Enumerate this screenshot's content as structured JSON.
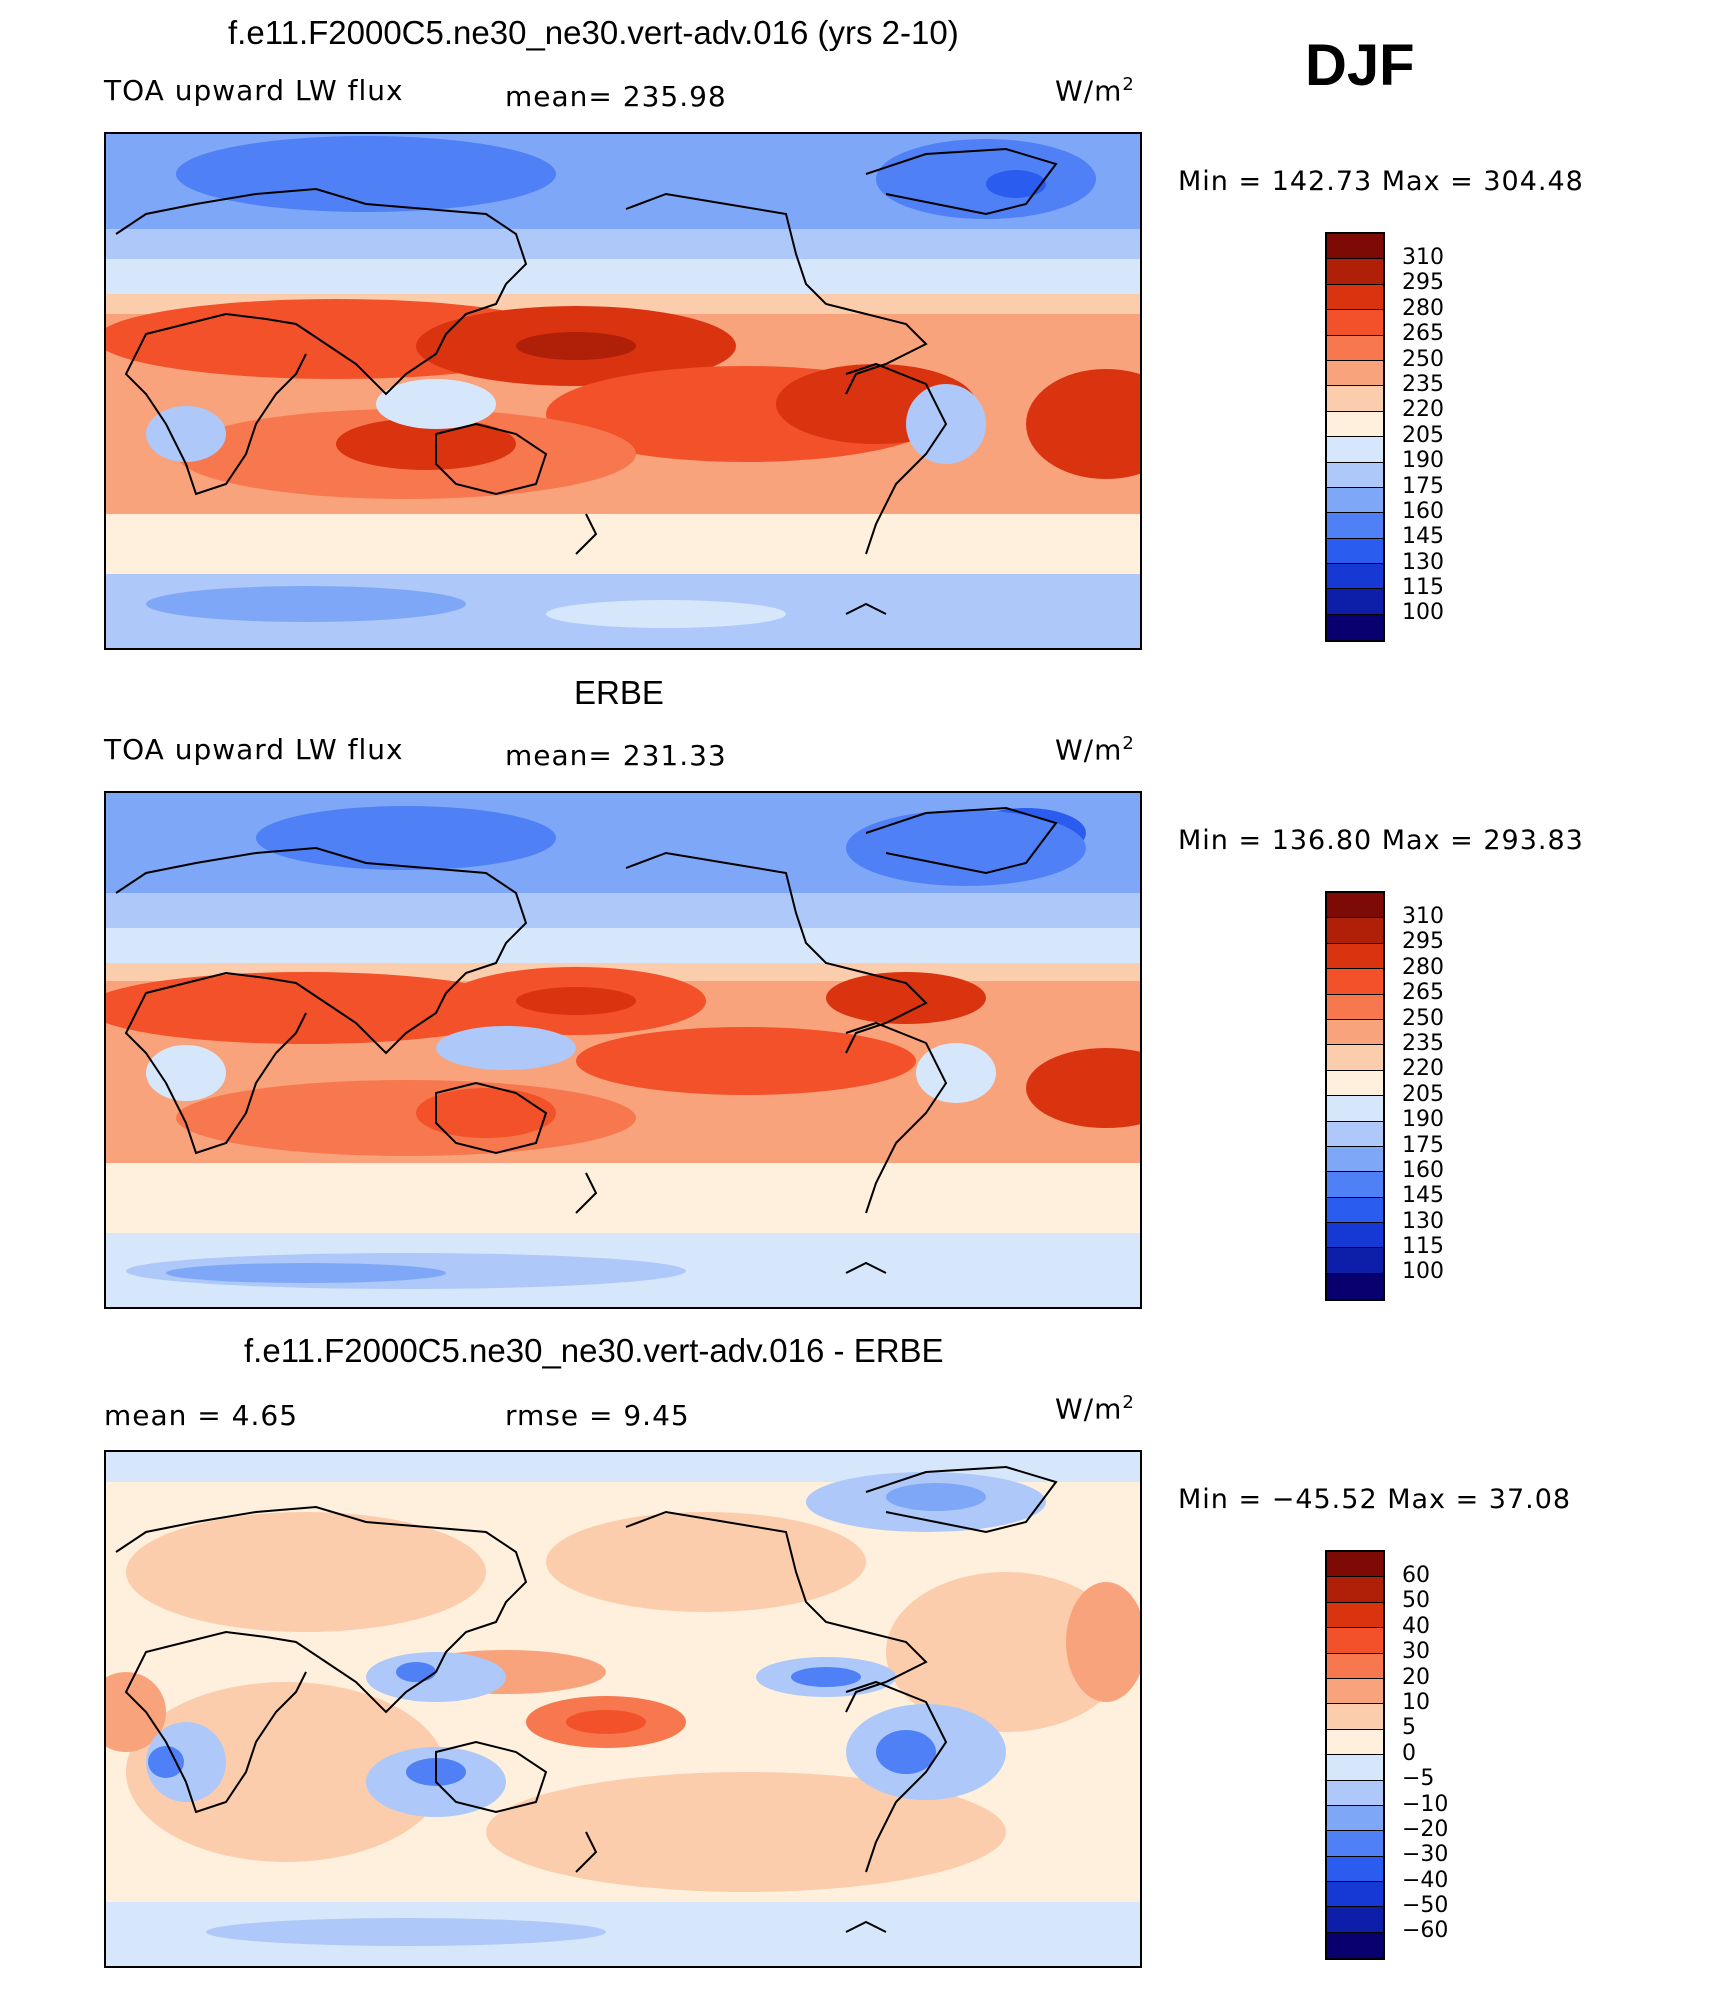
{
  "season": "DJF",
  "units_base": "W/m",
  "units_exp": "2",
  "colors": {
    "abs": [
      "#08006e",
      "#0d1fa8",
      "#1639d6",
      "#2a5cf0",
      "#4f80f5",
      "#7fa7f7",
      "#adc8f9",
      "#d6e7fb",
      "#fef0dc",
      "#fccdad",
      "#f9a37c",
      "#f7784f",
      "#f2512a",
      "#da3310",
      "#b01f08",
      "#7e0a06"
    ],
    "diff": [
      "#08006e",
      "#0d1fa8",
      "#1639d6",
      "#2a5cf0",
      "#4f80f5",
      "#7fa7f7",
      "#adc8f9",
      "#d6e7fb",
      "#fef0dc",
      "#fccdad",
      "#f9a37c",
      "#f7784f",
      "#f2512a",
      "#da3310",
      "#b01f08",
      "#7e0a06"
    ]
  },
  "panels": [
    {
      "title": "f.e11.F2000C5.ne30_ne30.vert-adv.016 (yrs 2-10)",
      "left_label": "TOA upward LW flux",
      "mid_label": "mean=  235.98",
      "stats": "Min  =  142.73  Max  =  304.48",
      "levels": [
        "310",
        "295",
        "280",
        "265",
        "250",
        "235",
        "220",
        "205",
        "190",
        "175",
        "160",
        "145",
        "130",
        "115",
        "100"
      ]
    },
    {
      "title": "ERBE",
      "left_label": "TOA upward LW flux",
      "mid_label": "mean=  231.33",
      "stats": "Min  =  136.80  Max  =  293.83",
      "levels": [
        "310",
        "295",
        "280",
        "265",
        "250",
        "235",
        "220",
        "205",
        "190",
        "175",
        "160",
        "145",
        "130",
        "115",
        "100"
      ]
    },
    {
      "title": "f.e11.F2000C5.ne30_ne30.vert-adv.016 - ERBE",
      "left_label": "mean  =      4.65",
      "mid_label": "rmse  =      9.45",
      "stats": "Min  =  −45.52  Max  =      37.08",
      "levels": [
        "60",
        "50",
        "40",
        "30",
        "20",
        "10",
        "5",
        "0",
        "−5",
        "−10",
        "−20",
        "−30",
        "−40",
        "−50",
        "−60"
      ]
    }
  ]
}
